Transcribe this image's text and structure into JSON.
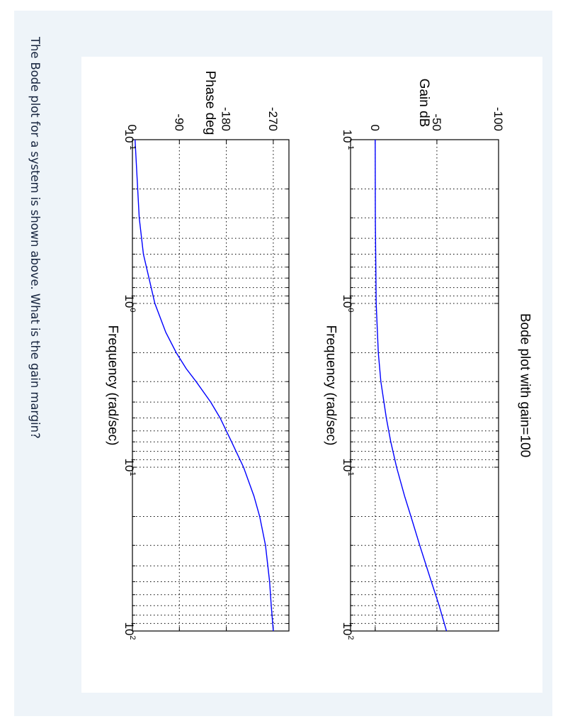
{
  "question": {
    "prefix": "The ",
    "link_text": "Bode plot",
    "suffix": " for a system is shown above. What is the gain margin?"
  },
  "colors": {
    "card_bg": "#eef4f9",
    "line": "#0000ff",
    "text": "#15233d"
  },
  "chart_data": [
    {
      "type": "line",
      "title": "Bode plot with gain=100",
      "xlabel": "Frequency (rad/sec)",
      "ylabel": "Gain dB",
      "xscale": "log",
      "xlim": [
        0.1,
        100
      ],
      "ylim": [
        -100,
        20
      ],
      "xticks": [
        {
          "value": 0.1,
          "base": "10",
          "exp": "-1"
        },
        {
          "value": 1,
          "base": "10",
          "exp": "0"
        },
        {
          "value": 10,
          "base": "10",
          "exp": "1"
        },
        {
          "value": 100,
          "base": "10",
          "exp": "2"
        }
      ],
      "yticks": [
        {
          "value": -100,
          "label": "-100"
        },
        {
          "value": -50,
          "label": "-50"
        },
        {
          "value": 0,
          "label": "0"
        }
      ],
      "grid": true,
      "series": [
        {
          "x": [
            0.1,
            0.3,
            1,
            2,
            3,
            5,
            7,
            10,
            15,
            20,
            30,
            50,
            70,
            100
          ],
          "y": [
            0,
            -0.1,
            -0.8,
            -2.5,
            -4.6,
            -9,
            -12.6,
            -17.3,
            -23.8,
            -29.0,
            -36.1,
            -45.5,
            -51.8,
            -57.8
          ]
        }
      ]
    },
    {
      "type": "line",
      "title": "",
      "xlabel": "Frequency (rad/sec)",
      "ylabel": "Phase deg",
      "xscale": "log",
      "xlim": [
        0.1,
        100
      ],
      "ylim": [
        -300,
        0
      ],
      "xticks": [
        {
          "value": 0.1,
          "base": "10",
          "exp": "-1"
        },
        {
          "value": 1,
          "base": "10",
          "exp": "0"
        },
        {
          "value": 10,
          "base": "10",
          "exp": "1"
        },
        {
          "value": 100,
          "base": "10",
          "exp": "2"
        }
      ],
      "yticks": [
        {
          "value": -270,
          "label": "-270"
        },
        {
          "value": -180,
          "label": "-180"
        },
        {
          "value": -90,
          "label": "-90"
        },
        {
          "value": 0,
          "label": "0"
        }
      ],
      "grid": true,
      "series": [
        {
          "x": [
            0.1,
            0.3,
            0.5,
            1,
            1.5,
            2,
            2.5,
            3,
            4,
            5,
            7,
            10,
            15,
            20,
            30,
            50,
            70,
            100
          ],
          "y": [
            -5,
            -13,
            -21,
            -43,
            -64,
            -84,
            -103,
            -122,
            -150,
            -168,
            -190,
            -213,
            -233,
            -244,
            -255,
            -263,
            -266,
            -270
          ]
        }
      ]
    }
  ]
}
